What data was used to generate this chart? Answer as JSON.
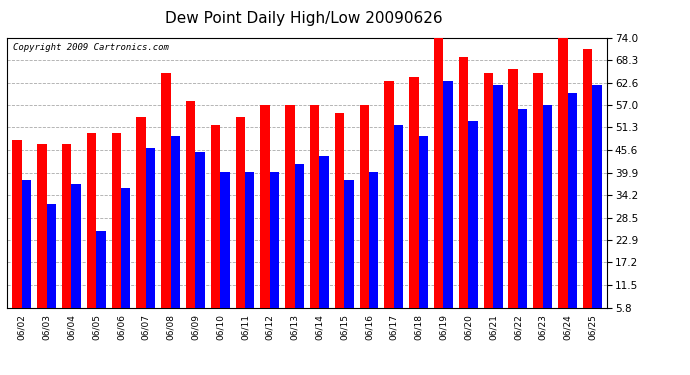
{
  "title": "Dew Point Daily High/Low 20090626",
  "copyright": "Copyright 2009 Cartronics.com",
  "dates": [
    "06/02",
    "06/03",
    "06/04",
    "06/05",
    "06/06",
    "06/07",
    "06/08",
    "06/09",
    "06/10",
    "06/11",
    "06/12",
    "06/13",
    "06/14",
    "06/15",
    "06/16",
    "06/17",
    "06/18",
    "06/19",
    "06/20",
    "06/21",
    "06/22",
    "06/23",
    "06/24",
    "06/25"
  ],
  "highs": [
    48.0,
    47.0,
    47.0,
    50.0,
    50.0,
    54.0,
    65.0,
    58.0,
    52.0,
    54.0,
    57.0,
    57.0,
    57.0,
    55.0,
    57.0,
    63.0,
    64.0,
    75.0,
    69.0,
    65.0,
    66.0,
    65.0,
    75.0,
    71.0
  ],
  "lows": [
    38.0,
    32.0,
    37.0,
    25.0,
    36.0,
    46.0,
    49.0,
    45.0,
    40.0,
    40.0,
    40.0,
    42.0,
    44.0,
    38.0,
    40.0,
    52.0,
    49.0,
    63.0,
    53.0,
    62.0,
    56.0,
    57.0,
    60.0,
    62.0
  ],
  "high_color": "#ff0000",
  "low_color": "#0000ff",
  "bg_color": "#ffffff",
  "grid_color": "#aaaaaa",
  "yticks": [
    5.8,
    11.5,
    17.2,
    22.9,
    28.5,
    34.2,
    39.9,
    45.6,
    51.3,
    57.0,
    62.6,
    68.3,
    74.0
  ],
  "ymin": 5.8,
  "ymax": 74.0,
  "bar_width": 0.38,
  "title_fontsize": 11,
  "copyright_fontsize": 6.5,
  "tick_fontsize": 7.5,
  "xtick_fontsize": 6.5
}
